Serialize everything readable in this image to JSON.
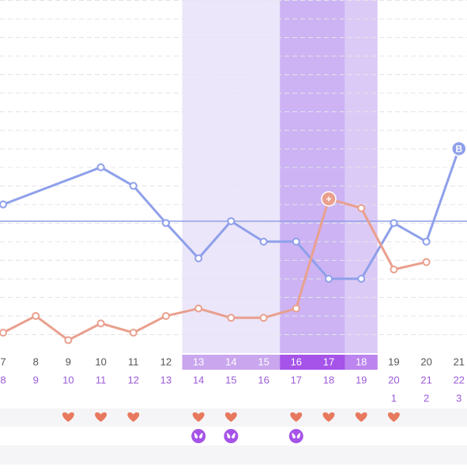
{
  "chart_data": {
    "type": "line",
    "x": [
      7,
      8,
      9,
      10,
      11,
      12,
      13,
      14,
      15,
      16,
      17,
      18,
      19,
      20,
      21
    ],
    "cycle_days": [
      8,
      9,
      10,
      11,
      12,
      13,
      14,
      15,
      16,
      17,
      18,
      19,
      20,
      21,
      22
    ],
    "after_days": [
      null,
      null,
      null,
      null,
      null,
      null,
      null,
      null,
      null,
      null,
      null,
      null,
      1,
      2,
      3
    ],
    "xlim": [
      6.9,
      21.25
    ],
    "ylim": [
      0,
      19
    ],
    "coverline": 7.1,
    "coverline_color": "#8fa0ea",
    "phases": [
      {
        "from": 6,
        "to": 8,
        "band_color": "#ece6fb",
        "pill_color": "#c9a6ee"
      },
      {
        "from": 9,
        "to": 10,
        "band_color": "#cdb3f4",
        "pill_color": "#a553e8"
      },
      {
        "from": 11,
        "to": 11,
        "band_color": "#dccaf6",
        "pill_color": "#bb84ee"
      }
    ],
    "series": [
      {
        "color": "#8fa0ea",
        "x": [
          7,
          10,
          11,
          12,
          13,
          14,
          15,
          16,
          17,
          18,
          19,
          20,
          21
        ],
        "values": [
          8.0,
          10.0,
          9.0,
          7.0,
          5.1,
          7.1,
          6.0,
          6.0,
          4.0,
          4.0,
          7.0,
          6.0,
          11.0
        ],
        "point_labels": [
          null,
          null,
          null,
          null,
          null,
          null,
          null,
          null,
          null,
          null,
          null,
          null,
          "B"
        ]
      },
      {
        "color": "#e9a08e",
        "x": [
          7,
          8,
          9,
          10,
          11,
          12,
          13,
          14,
          15,
          16,
          17,
          18,
          19,
          20
        ],
        "values": [
          1.1,
          2.0,
          0.7,
          1.6,
          1.1,
          2.0,
          2.4,
          1.9,
          1.9,
          2.4,
          8.3,
          7.8,
          4.5,
          4.9
        ],
        "point_labels": [
          null,
          null,
          null,
          null,
          null,
          null,
          null,
          null,
          null,
          null,
          "+",
          null,
          null,
          null
        ]
      }
    ],
    "hearts": [
      false,
      false,
      true,
      true,
      true,
      false,
      true,
      true,
      false,
      true,
      true,
      true,
      true,
      false,
      false
    ],
    "test_icons": [
      false,
      false,
      false,
      false,
      false,
      false,
      true,
      true,
      false,
      true,
      false,
      false,
      false,
      false,
      false
    ]
  }
}
